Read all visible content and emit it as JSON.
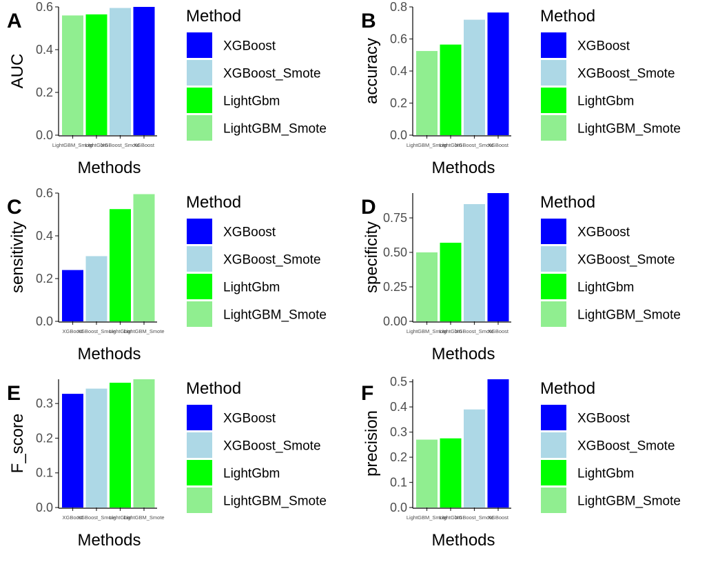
{
  "legend_title": "Method",
  "legend_items": [
    {
      "label": "XGBoost",
      "color": "#0000FF"
    },
    {
      "label": "XGBoost_Smote",
      "color": "#ADD8E6"
    },
    {
      "label": "LightGbm",
      "color": "#00FF00"
    },
    {
      "label": "LightGBM_Smote",
      "color": "#90EE90"
    }
  ],
  "chart_data": [
    {
      "panel": "A",
      "type": "bar",
      "xlabel": "Methods",
      "ylabel": "AUC",
      "ylim": [
        0,
        0.6
      ],
      "yticks": [
        "0.0",
        "0.2",
        "0.4",
        "0.6"
      ],
      "ytick_values": [
        0,
        0.2,
        0.4,
        0.6
      ],
      "categories": [
        "LightGBM_Smote",
        "LightGbm",
        "XGBoost_Smote",
        "XGBoost"
      ],
      "values": [
        0.56,
        0.565,
        0.595,
        0.6
      ],
      "colors": [
        "#90EE90",
        "#00FF00",
        "#ADD8E6",
        "#0000FF"
      ]
    },
    {
      "panel": "B",
      "type": "bar",
      "xlabel": "Methods",
      "ylabel": "accuracy",
      "ylim": [
        0,
        0.8
      ],
      "yticks": [
        "0.0",
        "0.2",
        "0.4",
        "0.6",
        "0.8"
      ],
      "ytick_values": [
        0,
        0.2,
        0.4,
        0.6,
        0.8
      ],
      "categories": [
        "LightGBM_Smote",
        "LightGbm",
        "XGBoost_Smote",
        "XGBoost"
      ],
      "values": [
        0.525,
        0.565,
        0.72,
        0.765
      ],
      "colors": [
        "#90EE90",
        "#00FF00",
        "#ADD8E6",
        "#0000FF"
      ]
    },
    {
      "panel": "C",
      "type": "bar",
      "xlabel": "Methods",
      "ylabel": "sensitivity",
      "ylim": [
        0,
        0.6
      ],
      "yticks": [
        "0.0",
        "0.2",
        "0.4",
        "0.6"
      ],
      "ytick_values": [
        0,
        0.2,
        0.4,
        0.6
      ],
      "categories": [
        "XGBoost",
        "XGBoost_Smote",
        "LightGbm",
        "LightGBM_Smote"
      ],
      "values": [
        0.24,
        0.305,
        0.525,
        0.595
      ],
      "colors": [
        "#0000FF",
        "#ADD8E6",
        "#00FF00",
        "#90EE90"
      ]
    },
    {
      "panel": "D",
      "type": "bar",
      "xlabel": "Methods",
      "ylabel": "specificity",
      "ylim": [
        0,
        0.93
      ],
      "yticks": [
        "0.00",
        "0.25",
        "0.50",
        "0.75"
      ],
      "ytick_values": [
        0,
        0.25,
        0.5,
        0.75
      ],
      "categories": [
        "LightGBM_Smote",
        "LightGbm",
        "XGBoost_Smote",
        "XGBoost"
      ],
      "values": [
        0.5,
        0.57,
        0.85,
        0.93
      ],
      "colors": [
        "#90EE90",
        "#00FF00",
        "#ADD8E6",
        "#0000FF"
      ]
    },
    {
      "panel": "E",
      "type": "bar",
      "xlabel": "Methods",
      "ylabel": "F_score",
      "ylim": [
        0,
        0.37
      ],
      "yticks": [
        "0.0",
        "0.1",
        "0.2",
        "0.3"
      ],
      "ytick_values": [
        0,
        0.1,
        0.2,
        0.3
      ],
      "categories": [
        "XGBoost",
        "XGBoost_Smote",
        "LightGbm",
        "LightGBM_Smote"
      ],
      "values": [
        0.328,
        0.343,
        0.36,
        0.37
      ],
      "colors": [
        "#0000FF",
        "#ADD8E6",
        "#00FF00",
        "#90EE90"
      ]
    },
    {
      "panel": "F",
      "type": "bar",
      "xlabel": "Methods",
      "ylabel": "precision",
      "ylim": [
        0,
        0.51
      ],
      "yticks": [
        "0.0",
        "0.1",
        "0.2",
        "0.3",
        "0.4",
        "0.5"
      ],
      "ytick_values": [
        0,
        0.1,
        0.2,
        0.3,
        0.4,
        0.5
      ],
      "categories": [
        "LightGBM_Smote",
        "LightGbm",
        "XGBoost_Smote",
        "XGBoost"
      ],
      "values": [
        0.27,
        0.275,
        0.39,
        0.51
      ],
      "colors": [
        "#90EE90",
        "#00FF00",
        "#ADD8E6",
        "#0000FF"
      ]
    }
  ]
}
